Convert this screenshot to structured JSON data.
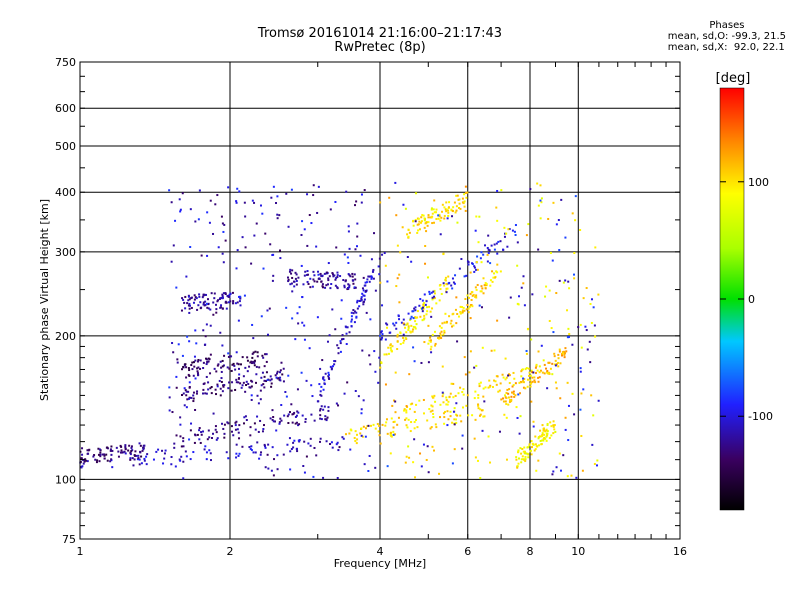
{
  "header": {
    "title_line1": "Tromsø 20161014 21:16:00–21:17:43",
    "title_line2": "RwPretec (8p)"
  },
  "phase_info": {
    "title": "Phases",
    "o_line": "mean, sd,O: -99.3, 21.5",
    "x_line": "mean, sd,X:  92.0, 22.1"
  },
  "colorbar": {
    "unit": "[deg]",
    "tick_labels": [
      "100",
      "0",
      "-100"
    ],
    "tick_values": [
      100,
      0,
      -100
    ],
    "range": [
      -180,
      180
    ]
  },
  "chart_data": {
    "type": "scatter",
    "xlabel": "Frequency [MHz]",
    "ylabel": "Stationary phase Virtual Height [km]",
    "x_scale": "log",
    "y_scale": "log",
    "xlim": [
      1,
      16
    ],
    "ylim": [
      75,
      750
    ],
    "x_ticks": [
      1,
      2,
      4,
      6,
      8,
      10,
      16
    ],
    "x_ticklabels": [
      "1",
      "2",
      "4",
      "6",
      "8",
      "10",
      "16"
    ],
    "y_ticks": [
      75,
      100,
      200,
      300,
      400,
      500,
      600,
      750
    ],
    "y_ticklabels": [
      "75",
      "100",
      "200",
      "300",
      "400",
      "500",
      "600",
      "750"
    ],
    "grid_x": [
      1,
      2,
      4,
      6,
      8,
      10,
      16
    ],
    "grid_y": [
      100,
      200,
      300,
      400,
      500,
      600
    ],
    "series": [
      {
        "traces": [
          {
            "f0": 1.0,
            "f1": 3.4,
            "h0": 108,
            "h1": 120,
            "phase": -110
          },
          {
            "f0": 1.0,
            "f1": 1.35,
            "h0": 112,
            "h1": 115,
            "phase": -130
          },
          {
            "f0": 1.6,
            "f1": 3.3,
            "h0": 122,
            "h1": 140,
            "phase": -125
          },
          {
            "f0": 1.6,
            "f1": 2.6,
            "h0": 150,
            "h1": 165,
            "phase": -130
          },
          {
            "f0": 1.6,
            "f1": 2.4,
            "h0": 170,
            "h1": 180,
            "phase": -135
          },
          {
            "f0": 1.6,
            "f1": 2.1,
            "h0": 235,
            "h1": 238,
            "phase": -120
          },
          {
            "f0": 2.6,
            "f1": 3.6,
            "h0": 265,
            "h1": 260,
            "phase": -120
          },
          {
            "f0": 3.0,
            "f1": 4.0,
            "h0": 150,
            "h1": 290,
            "phase": -105
          },
          {
            "f0": 3.4,
            "f1": 6.5,
            "h0": 122,
            "h1": 140,
            "phase": 100
          },
          {
            "f0": 4.2,
            "f1": 8.5,
            "h0": 135,
            "h1": 170,
            "phase": 100
          },
          {
            "f0": 4.0,
            "f1": 5.5,
            "h0": 175,
            "h1": 260,
            "phase": 95
          },
          {
            "f0": 5.0,
            "f1": 7.0,
            "h0": 190,
            "h1": 280,
            "phase": 105
          },
          {
            "f0": 7.0,
            "f1": 9.5,
            "h0": 145,
            "h1": 185,
            "phase": 115
          },
          {
            "f0": 4.5,
            "f1": 6.0,
            "h0": 330,
            "h1": 390,
            "phase": 100
          },
          {
            "f0": 7.5,
            "f1": 9.0,
            "h0": 110,
            "h1": 130,
            "phase": 90
          },
          {
            "f0": 4.0,
            "f1": 7.5,
            "h0": 200,
            "h1": 330,
            "phase": -95
          }
        ]
      }
    ]
  }
}
